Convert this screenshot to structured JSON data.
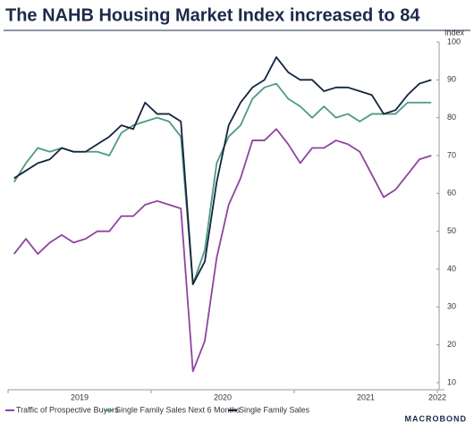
{
  "chart_data": {
    "type": "line",
    "title": "The NAHB Housing Market Index increased to 84",
    "y_label": "Index",
    "source": "MACROBOND",
    "x": [
      2019.042,
      2019.125,
      2019.208,
      2019.292,
      2019.375,
      2019.458,
      2019.542,
      2019.625,
      2019.708,
      2019.792,
      2019.875,
      2019.958,
      2020.042,
      2020.125,
      2020.208,
      2020.292,
      2020.375,
      2020.458,
      2020.542,
      2020.625,
      2020.708,
      2020.792,
      2020.875,
      2020.958,
      2021.042,
      2021.125,
      2021.208,
      2021.292,
      2021.375,
      2021.458,
      2021.542,
      2021.625,
      2021.708,
      2021.792,
      2021.875,
      2021.958
    ],
    "xlim": [
      2019,
      2022.05
    ],
    "xticks": [
      2019,
      2020,
      2021,
      2022
    ],
    "ylim": [
      10,
      100
    ],
    "yticks": [
      10,
      20,
      30,
      40,
      50,
      60,
      70,
      80,
      90,
      100
    ],
    "series": [
      {
        "name": "Traffic of Prospective Buyers",
        "color": "#8e44a0",
        "values": [
          44,
          48,
          44,
          47,
          49,
          47,
          48,
          50,
          50,
          54,
          54,
          57,
          58,
          57,
          56,
          13,
          21,
          43,
          57,
          64,
          74,
          74,
          77,
          73,
          68,
          72,
          72,
          74,
          73,
          71,
          65,
          59,
          61,
          65,
          69,
          70
        ]
      },
      {
        "name": "Single Family Sales Next 6 Months",
        "color": "#4e9a84",
        "values": [
          63,
          68,
          72,
          71,
          72,
          71,
          71,
          71,
          70,
          76,
          78,
          79,
          80,
          79,
          75,
          36,
          45,
          68,
          75,
          78,
          85,
          88,
          89,
          85,
          83,
          80,
          83,
          80,
          81,
          79,
          81,
          81,
          81,
          84,
          84,
          84
        ]
      },
      {
        "name": "Single Family Sales",
        "color": "#14233f",
        "values": [
          64,
          66,
          68,
          69,
          72,
          71,
          71,
          73,
          75,
          78,
          77,
          84,
          81,
          81,
          79,
          36,
          42,
          63,
          78,
          84,
          88,
          90,
          96,
          92,
          90,
          90,
          87,
          88,
          88,
          87,
          86,
          81,
          82,
          86,
          89,
          90
        ]
      }
    ]
  }
}
